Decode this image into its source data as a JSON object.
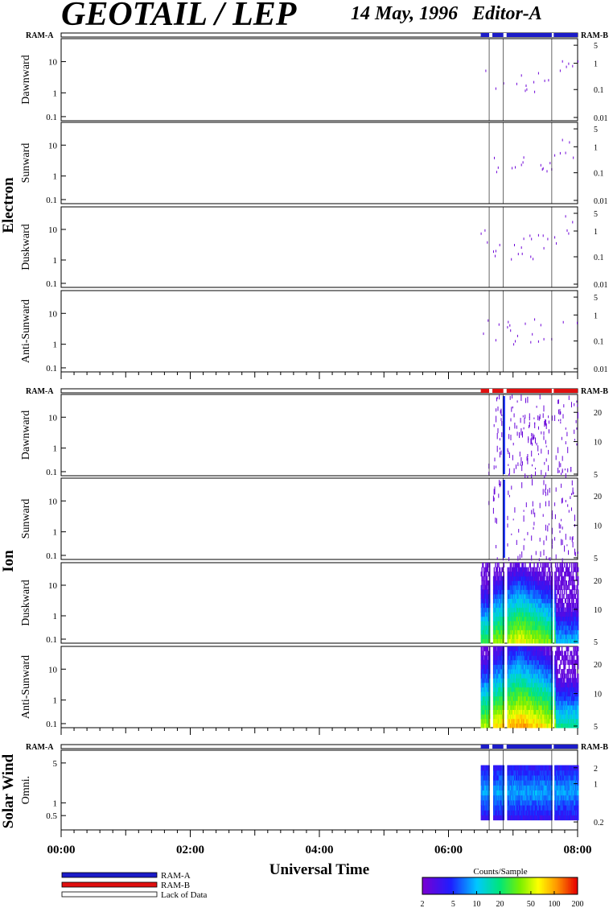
{
  "header": {
    "title": "GEOTAIL / LEP",
    "date": "14 May, 1996",
    "editor": "Editor-A"
  },
  "chart_data": {
    "type": "heatmap",
    "xlabel": "Universal Time",
    "x_range_hours": [
      0,
      8
    ],
    "x_ticks": [
      "00:00",
      "02:00",
      "04:00",
      "06:00",
      "08:00"
    ],
    "data_coverage_hours": [
      6.5,
      8.0
    ],
    "data_gaps_hours": [
      [
        6.63,
        6.68
      ],
      [
        6.85,
        6.9
      ],
      [
        7.6,
        7.63
      ]
    ],
    "mode_bar_labels": {
      "left": "RAM-A",
      "right": "RAM-B"
    },
    "groups": [
      {
        "name": "Electron",
        "mode_bar_color": "#1c1cc8",
        "right_axis_ticks": [
          "5",
          "1",
          "0.1",
          "0.01"
        ],
        "left_axis_ticks": [
          "10",
          "1",
          "0.1"
        ],
        "panels": [
          "Dawnward",
          "Sunward",
          "Duskward",
          "Anti-Sunward"
        ]
      },
      {
        "name": "Ion",
        "mode_bar_color": "#e01010",
        "right_axis_ticks": [
          "20",
          "10",
          "5"
        ],
        "left_axis_ticks": [
          "10",
          "1",
          "0.1"
        ],
        "panels": [
          "Dawnward",
          "Sunward",
          "Duskward",
          "Anti-Sunward"
        ]
      },
      {
        "name": "Solar Wind",
        "mode_bar_color": "#1c1cc8",
        "right_axis_ticks": [
          "2",
          "1",
          "0.2"
        ],
        "left_axis_ticks": [
          "5",
          "1",
          "0.5"
        ],
        "panels": [
          "Omni."
        ]
      }
    ],
    "legend": {
      "entries": [
        {
          "label": "RAM-A",
          "color": "#1c1cc8"
        },
        {
          "label": "RAM-B",
          "color": "#e01010"
        },
        {
          "label": "Lack of Data",
          "color": "#ffffff"
        }
      ]
    },
    "colorbar": {
      "title": "Counts/Sample",
      "ticks": [
        "2",
        "5",
        "10",
        "20",
        "50",
        "100",
        "200"
      ],
      "range": [
        2,
        200
      ],
      "scale": "log"
    }
  }
}
